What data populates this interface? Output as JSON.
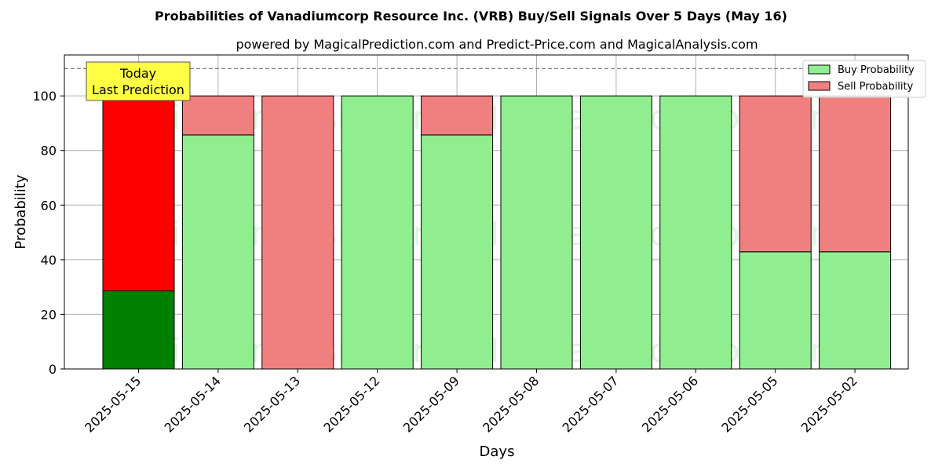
{
  "chart_data": {
    "type": "bar",
    "stacked": true,
    "title": "Probabilities of Vanadiumcorp Resource Inc. (VRB) Buy/Sell Signals Over 5 Days (May 16)",
    "subtitle": "powered by MagicalPrediction.com and Predict-Price.com and MagicalAnalysis.com",
    "xlabel": "Days",
    "ylabel": "Probability",
    "ylim": [
      0,
      115
    ],
    "yticks": [
      0,
      20,
      40,
      60,
      80,
      100
    ],
    "grid": true,
    "legend_position": "top-right",
    "reference_line": 110,
    "categories": [
      "2025-05-15",
      "2025-05-14",
      "2025-05-13",
      "2025-05-12",
      "2025-05-09",
      "2025-05-08",
      "2025-05-07",
      "2025-05-06",
      "2025-05-05",
      "2025-05-02"
    ],
    "series": [
      {
        "name": "Buy Probability",
        "values": [
          28.6,
          85.7,
          0,
          100,
          85.7,
          100,
          100,
          100,
          42.9,
          42.9
        ],
        "color": "#90ee90",
        "highlight_color": "#008000"
      },
      {
        "name": "Sell Probability",
        "values": [
          71.4,
          14.3,
          100,
          0,
          14.3,
          0,
          0,
          0,
          57.1,
          57.1
        ],
        "color": "#f08080",
        "highlight_color": "#ff0000"
      }
    ],
    "highlight_index": 0,
    "annotation": {
      "lines": [
        "Today",
        "Last Prediction"
      ],
      "color": "#ffff44"
    },
    "watermarks": [
      "MagicalAnalysis.com",
      "MagicalPrediction.com"
    ]
  }
}
